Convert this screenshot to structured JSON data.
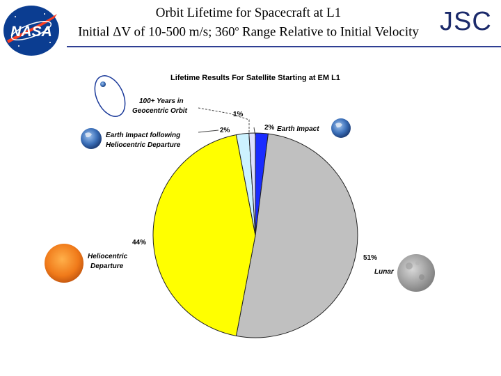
{
  "header": {
    "title_line1": "Orbit Lifetime for Spacecraft at L1",
    "title_line2_pre": "Initial ΔV of 10-500 m/s; 360",
    "title_line2_sup": "o",
    "title_line2_post": " Range Relative to Initial Velocity",
    "org": "JSC",
    "logo_text": "NASA"
  },
  "chart_data": {
    "type": "pie",
    "title": "Lifetime Results For Satellite Starting at EM L1",
    "slices": [
      {
        "label": "Earth Impact",
        "value": 2,
        "pct_label": "2%",
        "color": "#1a2cff"
      },
      {
        "label": "Lunar",
        "value": 51,
        "pct_label": "51%",
        "color": "#c0c0c0"
      },
      {
        "label": "Heliocentric Departure",
        "value": 44,
        "pct_label": "44%",
        "color": "#ffff00"
      },
      {
        "label": "Earth Impact following Heliocentric Departure",
        "value": 2,
        "pct_label": "2%",
        "color": "#ccf2ff"
      },
      {
        "label": "100+ Years in Geocentric Orbit",
        "value": 1,
        "pct_label": "1%",
        "color": "#dde0ff"
      }
    ]
  },
  "icons": {
    "earth": "earth-icon",
    "moon": "moon-icon",
    "sun": "sun-icon",
    "orbit": "geocentric-orbit-icon"
  }
}
